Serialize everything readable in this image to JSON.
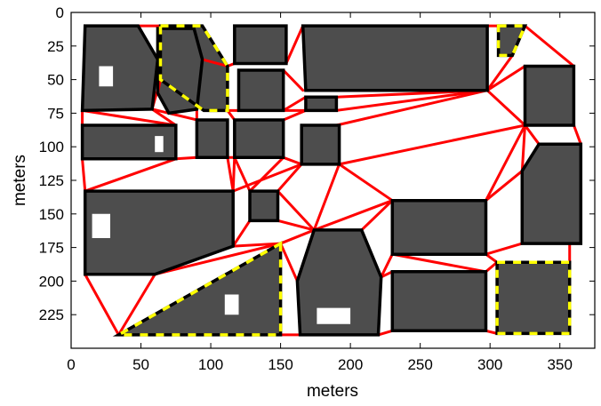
{
  "chart_data": {
    "type": "map",
    "xlabel": "meters",
    "ylabel": "meters",
    "xlim": [
      0,
      375
    ],
    "ylim": [
      0,
      250
    ],
    "y_inverted": true,
    "x_ticks": [
      0,
      50,
      100,
      150,
      200,
      250,
      300,
      350
    ],
    "y_ticks": [
      0,
      25,
      50,
      75,
      100,
      125,
      150,
      175,
      200,
      225
    ],
    "colors": {
      "building": "#4d4d4d",
      "boundary": "#000000",
      "edges": "#ff0000",
      "highlight_dash": "#ffff00",
      "background": "#ffffff"
    },
    "regions": [
      {
        "id": "R1",
        "polygon": [
          [
            10,
            10
          ],
          [
            48,
            10
          ],
          [
            62,
            35
          ],
          [
            58,
            72
          ],
          [
            8,
            73
          ]
        ],
        "highlight": false
      },
      {
        "id": "R2",
        "polygon": [
          [
            62,
            12
          ],
          [
            88,
            12
          ],
          [
            94,
            35
          ],
          [
            90,
            72
          ],
          [
            70,
            75
          ],
          [
            62,
            60
          ]
        ],
        "highlight": false
      },
      {
        "id": "R3",
        "polygon": [
          [
            64,
            10
          ],
          [
            94,
            10
          ],
          [
            112,
            40
          ],
          [
            112,
            73
          ],
          [
            95,
            73
          ],
          [
            64,
            50
          ]
        ],
        "highlight": true
      },
      {
        "id": "R4",
        "polygon": [
          [
            117,
            10
          ],
          [
            154,
            10
          ],
          [
            154,
            38
          ],
          [
            117,
            38
          ]
        ],
        "highlight": false
      },
      {
        "id": "R5",
        "polygon": [
          [
            120,
            43
          ],
          [
            152,
            43
          ],
          [
            152,
            73
          ],
          [
            120,
            73
          ]
        ],
        "highlight": false
      },
      {
        "id": "R6",
        "polygon": [
          [
            166,
            10
          ],
          [
            298,
            10
          ],
          [
            298,
            58
          ],
          [
            168,
            58
          ]
        ],
        "highlight": false
      },
      {
        "id": "R7",
        "polygon": [
          [
            306,
            10
          ],
          [
            325,
            10
          ],
          [
            316,
            32
          ],
          [
            306,
            32
          ]
        ],
        "highlight": true
      },
      {
        "id": "R8",
        "polygon": [
          [
            325,
            40
          ],
          [
            360,
            40
          ],
          [
            360,
            84
          ],
          [
            325,
            84
          ]
        ],
        "highlight": false
      },
      {
        "id": "R9",
        "polygon": [
          [
            168,
            63
          ],
          [
            190,
            63
          ],
          [
            190,
            73
          ],
          [
            168,
            73
          ]
        ],
        "highlight": false
      },
      {
        "id": "R10",
        "polygon": [
          [
            8,
            84
          ],
          [
            75,
            84
          ],
          [
            75,
            109
          ],
          [
            8,
            109
          ]
        ],
        "highlight": false
      },
      {
        "id": "R11",
        "polygon": [
          [
            90,
            80
          ],
          [
            112,
            80
          ],
          [
            112,
            108
          ],
          [
            90,
            108
          ]
        ],
        "highlight": false
      },
      {
        "id": "R12",
        "polygon": [
          [
            117,
            80
          ],
          [
            152,
            80
          ],
          [
            152,
            108
          ],
          [
            117,
            108
          ]
        ],
        "highlight": false
      },
      {
        "id": "R13",
        "polygon": [
          [
            165,
            84
          ],
          [
            192,
            84
          ],
          [
            192,
            113
          ],
          [
            165,
            113
          ]
        ],
        "highlight": false
      },
      {
        "id": "R14",
        "polygon": [
          [
            335,
            98
          ],
          [
            365,
            98
          ],
          [
            365,
            172
          ],
          [
            323,
            172
          ],
          [
            323,
            118
          ]
        ],
        "highlight": false
      },
      {
        "id": "R15",
        "polygon": [
          [
            10,
            133
          ],
          [
            116,
            133
          ],
          [
            116,
            174
          ],
          [
            60,
            195
          ],
          [
            10,
            195
          ]
        ],
        "highlight": false
      },
      {
        "id": "R16",
        "polygon": [
          [
            128,
            133
          ],
          [
            148,
            133
          ],
          [
            148,
            155
          ],
          [
            128,
            155
          ]
        ],
        "highlight": false
      },
      {
        "id": "R17",
        "polygon": [
          [
            230,
            140
          ],
          [
            297,
            140
          ],
          [
            297,
            180
          ],
          [
            230,
            180
          ]
        ],
        "highlight": false
      },
      {
        "id": "R18",
        "polygon": [
          [
            174,
            162
          ],
          [
            208,
            162
          ],
          [
            222,
            197
          ],
          [
            220,
            240
          ],
          [
            164,
            240
          ],
          [
            162,
            200
          ]
        ],
        "highlight": false
      },
      {
        "id": "R19",
        "polygon": [
          [
            150,
            172
          ],
          [
            150,
            240
          ],
          [
            34,
            240
          ]
        ],
        "highlight": true
      },
      {
        "id": "R20",
        "polygon": [
          [
            230,
            193
          ],
          [
            297,
            193
          ],
          [
            297,
            237
          ],
          [
            230,
            237
          ]
        ],
        "highlight": false
      },
      {
        "id": "R21",
        "polygon": [
          [
            305,
            186
          ],
          [
            357,
            186
          ],
          [
            357,
            239
          ],
          [
            305,
            239
          ]
        ],
        "highlight": true
      }
    ],
    "edges": [
      [
        [
          48,
          10
        ],
        [
          64,
          10
        ]
      ],
      [
        [
          58,
          72
        ],
        [
          64,
          50
        ]
      ],
      [
        [
          58,
          72
        ],
        [
          70,
          75
        ]
      ],
      [
        [
          62,
          60
        ],
        [
          64,
          50
        ]
      ],
      [
        [
          94,
          35
        ],
        [
          112,
          40
        ]
      ],
      [
        [
          112,
          40
        ],
        [
          117,
          38
        ]
      ],
      [
        [
          112,
          73
        ],
        [
          120,
          73
        ]
      ],
      [
        [
          112,
          73
        ],
        [
          117,
          80
        ]
      ],
      [
        [
          90,
          72
        ],
        [
          90,
          80
        ]
      ],
      [
        [
          70,
          75
        ],
        [
          90,
          80
        ]
      ],
      [
        [
          58,
          72
        ],
        [
          75,
          84
        ]
      ],
      [
        [
          8,
          73
        ],
        [
          8,
          84
        ]
      ],
      [
        [
          8,
          73
        ],
        [
          75,
          84
        ]
      ],
      [
        [
          154,
          38
        ],
        [
          166,
          10
        ]
      ],
      [
        [
          152,
          43
        ],
        [
          166,
          58
        ]
      ],
      [
        [
          152,
          73
        ],
        [
          168,
          73
        ]
      ],
      [
        [
          152,
          73
        ],
        [
          168,
          63
        ]
      ],
      [
        [
          190,
          63
        ],
        [
          298,
          58
        ]
      ],
      [
        [
          190,
          73
        ],
        [
          298,
          58
        ]
      ],
      [
        [
          298,
          10
        ],
        [
          306,
          10
        ]
      ],
      [
        [
          298,
          58
        ],
        [
          316,
          32
        ]
      ],
      [
        [
          298,
          58
        ],
        [
          325,
          40
        ]
      ],
      [
        [
          325,
          10
        ],
        [
          360,
          40
        ]
      ],
      [
        [
          298,
          58
        ],
        [
          325,
          84
        ]
      ],
      [
        [
          190,
          84
        ],
        [
          298,
          58
        ]
      ],
      [
        [
          192,
          113
        ],
        [
          325,
          84
        ]
      ],
      [
        [
          152,
          108
        ],
        [
          165,
          113
        ]
      ],
      [
        [
          152,
          80
        ],
        [
          168,
          73
        ]
      ],
      [
        [
          112,
          108
        ],
        [
          117,
          108
        ]
      ],
      [
        [
          75,
          109
        ],
        [
          90,
          108
        ]
      ],
      [
        [
          8,
          109
        ],
        [
          10,
          133
        ]
      ],
      [
        [
          75,
          109
        ],
        [
          10,
          133
        ]
      ],
      [
        [
          112,
          108
        ],
        [
          116,
          133
        ]
      ],
      [
        [
          117,
          108
        ],
        [
          116,
          133
        ]
      ],
      [
        [
          117,
          108
        ],
        [
          128,
          133
        ]
      ],
      [
        [
          152,
          108
        ],
        [
          128,
          133
        ]
      ],
      [
        [
          165,
          113
        ],
        [
          116,
          133
        ]
      ],
      [
        [
          165,
          113
        ],
        [
          148,
          133
        ]
      ],
      [
        [
          192,
          113
        ],
        [
          230,
          140
        ]
      ],
      [
        [
          192,
          113
        ],
        [
          174,
          162
        ]
      ],
      [
        [
          325,
          84
        ],
        [
          335,
          98
        ]
      ],
      [
        [
          360,
          84
        ],
        [
          365,
          98
        ]
      ],
      [
        [
          325,
          84
        ],
        [
          323,
          118
        ]
      ],
      [
        [
          297,
          140
        ],
        [
          323,
          118
        ]
      ],
      [
        [
          297,
          140
        ],
        [
          325,
          84
        ]
      ],
      [
        [
          297,
          180
        ],
        [
          323,
          172
        ]
      ],
      [
        [
          297,
          180
        ],
        [
          305,
          186
        ]
      ],
      [
        [
          297,
          193
        ],
        [
          305,
          186
        ]
      ],
      [
        [
          297,
          237
        ],
        [
          305,
          239
        ]
      ],
      [
        [
          357,
          186
        ],
        [
          357,
          172
        ]
      ],
      [
        [
          116,
          174
        ],
        [
          128,
          155
        ]
      ],
      [
        [
          148,
          155
        ],
        [
          174,
          162
        ]
      ],
      [
        [
          148,
          133
        ],
        [
          174,
          162
        ]
      ],
      [
        [
          116,
          174
        ],
        [
          150,
          172
        ]
      ],
      [
        [
          174,
          162
        ],
        [
          150,
          172
        ]
      ],
      [
        [
          174,
          162
        ],
        [
          230,
          140
        ]
      ],
      [
        [
          208,
          162
        ],
        [
          230,
          140
        ]
      ],
      [
        [
          222,
          197
        ],
        [
          230,
          180
        ]
      ],
      [
        [
          222,
          197
        ],
        [
          230,
          193
        ]
      ],
      [
        [
          220,
          240
        ],
        [
          230,
          237
        ]
      ],
      [
        [
          174,
          162
        ],
        [
          162,
          200
        ]
      ],
      [
        [
          150,
          172
        ],
        [
          162,
          200
        ]
      ],
      [
        [
          150,
          240
        ],
        [
          164,
          240
        ]
      ],
      [
        [
          34,
          240
        ],
        [
          60,
          195
        ]
      ],
      [
        [
          34,
          240
        ],
        [
          10,
          195
        ]
      ],
      [
        [
          60,
          195
        ],
        [
          150,
          172
        ]
      ],
      [
        [
          230,
          180
        ],
        [
          297,
          193
        ]
      ]
    ]
  }
}
